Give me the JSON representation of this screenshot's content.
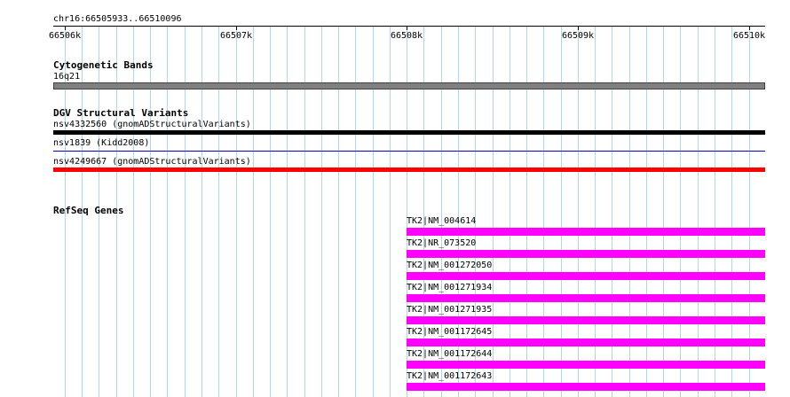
{
  "ruler": {
    "location": "chr16:66505933..66510096",
    "start_bp": 66505933,
    "end_bp": 66510096,
    "ticks": [
      {
        "bp": 66506000,
        "label": "66506k"
      },
      {
        "bp": 66507000,
        "label": "66507k"
      },
      {
        "bp": 66508000,
        "label": "66508k"
      },
      {
        "bp": 66509000,
        "label": "66509k"
      },
      {
        "bp": 66510000,
        "label": "66510k"
      }
    ]
  },
  "tracks": {
    "cytoband": {
      "title": "Cytogenetic Bands",
      "band_label": "16q21",
      "color": "#808080"
    },
    "dgv": {
      "title": "DGV Structural Variants",
      "items": [
        {
          "label": "nsv4332560 (gnomADStructuralVariants)",
          "color": "#000000"
        },
        {
          "label": "nsv1839 (Kidd2008)",
          "color": "#0000cc"
        },
        {
          "label": "nsv4249667 (gnomADStructuralVariants)",
          "color": "#ff0000"
        }
      ]
    },
    "refseq": {
      "title": "RefSeq Genes",
      "color": "#ff00ff",
      "items": [
        {
          "label": "TK2|NM_004614"
        },
        {
          "label": "TK2|NR_073520"
        },
        {
          "label": "TK2|NM_001272050"
        },
        {
          "label": "TK2|NM_001271934"
        },
        {
          "label": "TK2|NM_001271935"
        },
        {
          "label": "TK2|NM_001172645"
        },
        {
          "label": "TK2|NM_001172644"
        },
        {
          "label": "TK2|NM_001172643"
        }
      ]
    }
  },
  "colors": {
    "grid_line": "#add8e6",
    "ruler_line": "#000000"
  }
}
